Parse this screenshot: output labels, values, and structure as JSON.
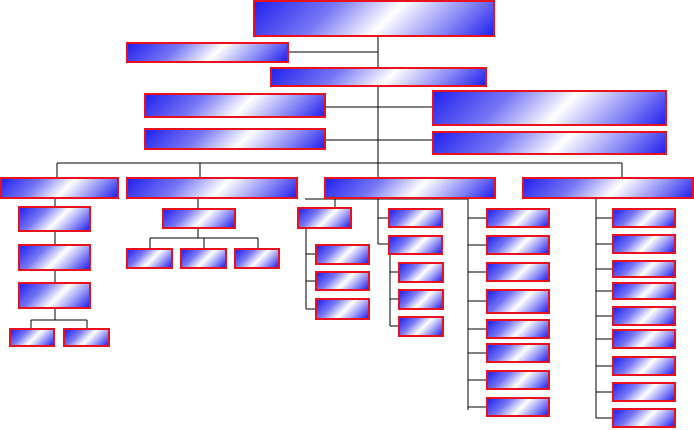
{
  "diagram": {
    "type": "organization-chart",
    "node_fill": [
      "#2222ee",
      "#ffffff"
    ],
    "node_border_color": "#e8121e",
    "connector_color": "#000000",
    "node_labels": []
  }
}
